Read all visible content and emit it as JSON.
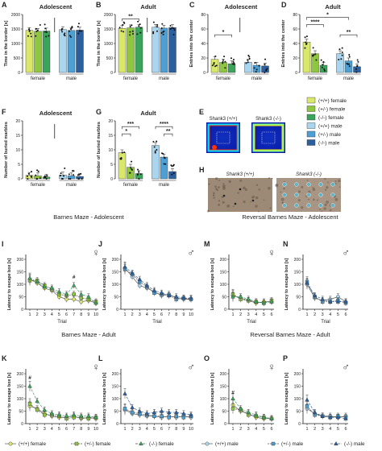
{
  "colors": {
    "wt_f": "#d9e86a",
    "het_f": "#8ec63f",
    "ko_f": "#3aa55a",
    "wt_m": "#a9d6ee",
    "het_m": "#4e9fd4",
    "ko_m": "#2b5f9e",
    "axis": "#222222"
  },
  "legend_right": [
    "(+/+) female",
    "(+/-) female",
    "(-/-) female",
    "(+/+) male",
    "(+/-) male",
    "(-/-) male"
  ],
  "legend_bottom": [
    "(+/+) female",
    "(+/-) female",
    "(-/-) female",
    "(+/+) male",
    "(+/-) male",
    "(-/-) male"
  ],
  "section_titles": {
    "bm_adolescent": "Barnes Maze - Adolescent",
    "rbm_adolescent": "Reversal Barnes Maze - Adolescent",
    "bm_adult": "Barnes Maze - Adult",
    "rbm_adult": "Reversal Barnes Maze - Adult"
  },
  "panel_E": {
    "label": "E",
    "titles": [
      "Shank3 (+/+)",
      "Shank3 (-/-)"
    ]
  },
  "panel_H": {
    "label": "H",
    "titles": [
      "Shank3 (+/+)",
      "Shank3 (-/-)"
    ]
  },
  "chart_data": [
    {
      "id": "A",
      "type": "bar",
      "title": "Adolescent",
      "ylabel": "Time in the border [s]",
      "ylim": [
        0,
        2000
      ],
      "yticks": [
        "0",
        "500",
        "1000",
        "1500",
        "2000"
      ],
      "groups": [
        "female",
        "male"
      ],
      "values": [
        [
          1450,
          1420,
          1430
        ],
        [
          1480,
          1450,
          1460
        ]
      ],
      "sig": [],
      "ns_mark": true
    },
    {
      "id": "B",
      "type": "bar",
      "title": "Adult",
      "ylabel": "Time in the border [s]",
      "ylim": [
        0,
        2000
      ],
      "yticks": [
        "0",
        "500",
        "1000",
        "1500",
        "2000"
      ],
      "groups": [
        "female",
        "male"
      ],
      "values": [
        [
          1520,
          1540,
          1560
        ],
        [
          1560,
          1530,
          1550
        ]
      ],
      "sig": [
        {
          "text": "**",
          "from": 0,
          "to": 2,
          "level": 1850
        }
      ],
      "ns_mark": true
    },
    {
      "id": "C",
      "type": "bar",
      "title": "Adolescent",
      "ylabel": "Entries into the center",
      "ylim": [
        0,
        80
      ],
      "yticks": [
        "0",
        "20",
        "40",
        "60",
        "80"
      ],
      "groups": [
        "female",
        "male"
      ],
      "values": [
        [
          18,
          14,
          12
        ],
        [
          14,
          10,
          9
        ]
      ],
      "sig": [
        {
          "text": "*",
          "from": 0,
          "to": 2,
          "level": 52
        }
      ],
      "ns_mark": true
    },
    {
      "id": "D",
      "type": "bar",
      "title": "Adult",
      "ylabel": "Entries into the center",
      "ylim": [
        0,
        80
      ],
      "yticks": [
        "0",
        "20",
        "40",
        "60",
        "80"
      ],
      "groups": [
        "female",
        "male"
      ],
      "values": [
        [
          42,
          26,
          10
        ],
        [
          26,
          16,
          8
        ]
      ],
      "sig": [
        {
          "text": "*",
          "from": 0,
          "to": 4,
          "level": 76
        },
        {
          "text": "****",
          "from": 0,
          "to": 2,
          "level": 66
        },
        {
          "text": "**",
          "from": 3,
          "to": 5,
          "level": 52
        }
      ],
      "ns_mark": false
    },
    {
      "id": "F",
      "type": "bar",
      "title": "Adolescent",
      "ylabel": "Number of buried marbles",
      "ylim": [
        0,
        20
      ],
      "yticks": [
        "0",
        "5",
        "10",
        "15",
        "20"
      ],
      "groups": [
        "female",
        "male"
      ],
      "values": [
        [
          1.2,
          1.0,
          0.6
        ],
        [
          1.3,
          1.0,
          0.8
        ]
      ],
      "sig": [],
      "ns_mark": true
    },
    {
      "id": "G",
      "type": "bar",
      "title": "Adult",
      "ylabel": "Number of buried marbles",
      "ylim": [
        0,
        20
      ],
      "yticks": [
        "0",
        "5",
        "10",
        "15",
        "20"
      ],
      "groups": [
        "female",
        "male"
      ],
      "values": [
        [
          9.0,
          4.0,
          1.8
        ],
        [
          11.5,
          7.5,
          2.5
        ]
      ],
      "sig": [
        {
          "text": "***",
          "from": 0,
          "to": 2,
          "level": 18
        },
        {
          "text": "*",
          "from": 0,
          "to": 1,
          "level": 15.5
        },
        {
          "text": "****",
          "from": 3,
          "to": 5,
          "level": 18
        },
        {
          "text": "**",
          "from": 4,
          "to": 5,
          "level": 15.5
        }
      ],
      "ns_mark": false
    },
    {
      "id": "I",
      "type": "line",
      "sex": "female",
      "ylabel": "Latency to escape box [s]",
      "xlabel": "Trial",
      "ylim": [
        0,
        200
      ],
      "yticks": [
        "0",
        "50",
        "100",
        "150",
        "200"
      ],
      "x": [
        1,
        2,
        3,
        4,
        5,
        6,
        7,
        8,
        9,
        10
      ],
      "series": [
        {
          "values": [
            120,
            105,
            85,
            75,
            50,
            40,
            40,
            30,
            35,
            25
          ]
        },
        {
          "values": [
            115,
            115,
            95,
            80,
            60,
            55,
            60,
            45,
            40,
            30
          ]
        },
        {
          "values": [
            125,
            110,
            90,
            85,
            70,
            60,
            95,
            60,
            50,
            25
          ]
        }
      ],
      "marks": [
        {
          "text": "#",
          "x": 7,
          "y": 122
        }
      ]
    },
    {
      "id": "J",
      "type": "line",
      "sex": "male",
      "ylabel": "Latency to escape box [s]",
      "xlabel": "Trial",
      "ylim": [
        0,
        200
      ],
      "yticks": [
        "0",
        "50",
        "100",
        "150",
        "200"
      ],
      "x": [
        1,
        2,
        3,
        4,
        5,
        6,
        7,
        8,
        9,
        10
      ],
      "series": [
        {
          "values": [
            165,
            130,
            95,
            85,
            70,
            55,
            60,
            45,
            40,
            40
          ]
        },
        {
          "values": [
            160,
            140,
            110,
            90,
            65,
            60,
            55,
            40,
            45,
            40
          ]
        },
        {
          "values": [
            170,
            145,
            120,
            95,
            75,
            65,
            55,
            50,
            45,
            45
          ]
        }
      ],
      "marks": []
    },
    {
      "id": "M",
      "type": "line",
      "sex": "female",
      "ylabel": "Latency to escape box [s]",
      "xlabel": "Trial",
      "ylim": [
        0,
        200
      ],
      "yticks": [
        "0",
        "50",
        "100",
        "150",
        "200"
      ],
      "x": [
        1,
        2,
        3,
        4,
        5,
        6
      ],
      "series": [
        {
          "values": [
            55,
            45,
            35,
            25,
            30,
            30
          ]
        },
        {
          "values": [
            60,
            40,
            35,
            30,
            25,
            35
          ]
        },
        {
          "values": [
            50,
            50,
            40,
            30,
            25,
            30
          ]
        }
      ],
      "marks": []
    },
    {
      "id": "N",
      "type": "line",
      "sex": "male",
      "ylabel": "Latency to escape box [s]",
      "xlabel": "Trial",
      "ylim": [
        0,
        200
      ],
      "yticks": [
        "0",
        "50",
        "100",
        "150",
        "200"
      ],
      "x": [
        1,
        2,
        3,
        4,
        5,
        6
      ],
      "series": [
        {
          "values": [
            100,
            45,
            35,
            40,
            50,
            30
          ]
        },
        {
          "values": [
            110,
            50,
            30,
            30,
            35,
            25
          ]
        },
        {
          "values": [
            105,
            55,
            40,
            30,
            30,
            30
          ]
        }
      ],
      "marks": []
    },
    {
      "id": "K",
      "type": "line",
      "sex": "female",
      "ylabel": "Latency to escape box [s]",
      "xlabel": "",
      "ylim": [
        0,
        200
      ],
      "yticks": [
        "0",
        "50",
        "100",
        "150",
        "200"
      ],
      "x": [
        1,
        2,
        3,
        4,
        5,
        6,
        7,
        8,
        9,
        10
      ],
      "series": [
        {
          "values": [
            70,
            60,
            40,
            30,
            25,
            25,
            30,
            20,
            25,
            20
          ]
        },
        {
          "values": [
            80,
            55,
            35,
            35,
            30,
            20,
            25,
            25,
            20,
            25
          ]
        },
        {
          "values": [
            150,
            90,
            55,
            40,
            35,
            30,
            35,
            30,
            30,
            25
          ]
        }
      ],
      "marks": [
        {
          "text": "#",
          "x": 1,
          "y": 178
        }
      ]
    },
    {
      "id": "L",
      "type": "line",
      "sex": "male",
      "ylabel": "Latency to escape box [s]",
      "xlabel": "",
      "ylim": [
        0,
        200
      ],
      "yticks": [
        "0",
        "50",
        "100",
        "150",
        "200"
      ],
      "x": [
        1,
        2,
        3,
        4,
        5,
        6,
        7,
        8,
        9,
        10
      ],
      "series": [
        {
          "values": [
            55,
            40,
            35,
            30,
            30,
            25,
            30,
            25,
            30,
            25
          ]
        },
        {
          "values": [
            60,
            45,
            40,
            35,
            30,
            30,
            25,
            30,
            25,
            30
          ]
        },
        {
          "values": [
            120,
            65,
            50,
            40,
            45,
            50,
            45,
            45,
            40,
            35
          ]
        }
      ],
      "marks": []
    },
    {
      "id": "O",
      "type": "line",
      "sex": "female",
      "ylabel": "Latency to escape box [s]",
      "xlabel": "",
      "ylim": [
        0,
        200
      ],
      "yticks": [
        "0",
        "50",
        "100",
        "150",
        "200"
      ],
      "x": [
        1,
        2,
        3,
        4,
        5,
        6
      ],
      "series": [
        {
          "values": [
            75,
            50,
            40,
            25,
            20,
            20
          ]
        },
        {
          "values": [
            60,
            55,
            35,
            30,
            25,
            20
          ]
        },
        {
          "values": [
            100,
            60,
            45,
            35,
            25,
            20
          ]
        }
      ],
      "marks": [
        {
          "text": "#",
          "x": 1,
          "y": 118
        }
      ]
    },
    {
      "id": "P",
      "type": "line",
      "sex": "male",
      "ylabel": "Latency to escape box [s]",
      "xlabel": "",
      "ylim": [
        0,
        200
      ],
      "yticks": [
        "0",
        "50",
        "100",
        "150",
        "200"
      ],
      "x": [
        1,
        2,
        3,
        4,
        5,
        6
      ],
      "series": [
        {
          "values": [
            60,
            40,
            30,
            30,
            25,
            30
          ]
        },
        {
          "values": [
            70,
            35,
            30,
            25,
            30,
            25
          ]
        },
        {
          "values": [
            95,
            45,
            30,
            25,
            25,
            20
          ]
        }
      ],
      "marks": []
    }
  ]
}
